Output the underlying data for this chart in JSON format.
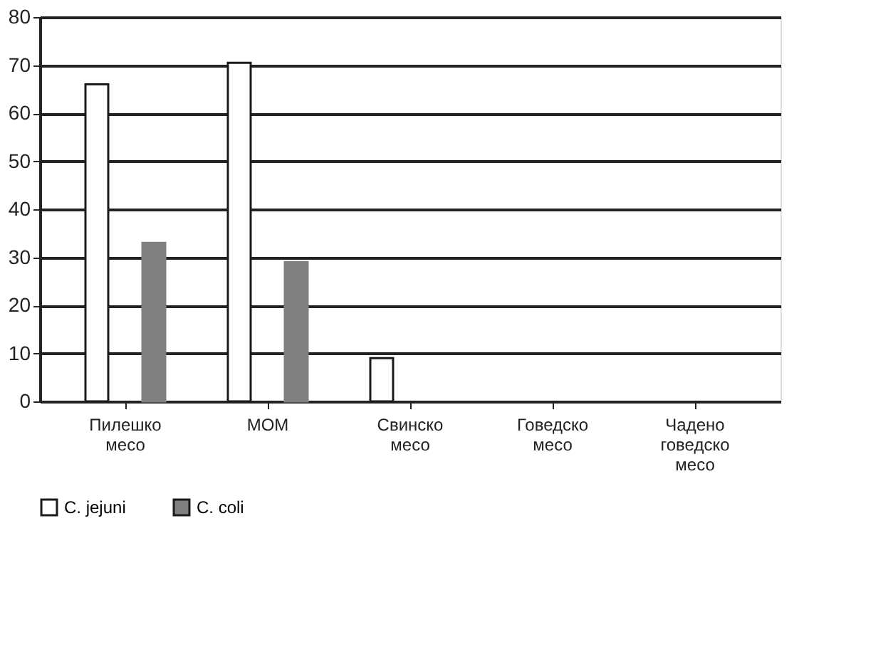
{
  "chart_data": {
    "type": "bar",
    "categories": [
      "Пилешко месо",
      "МОМ",
      "Свинско месо",
      "Говедско месо",
      "Чадено говедско месо"
    ],
    "series": [
      {
        "name": "C. jejuni",
        "color": "#ffffff",
        "values": [
          66,
          70.5,
          9,
          0,
          0
        ]
      },
      {
        "name": "C. coli",
        "color": "#808080",
        "values": [
          33,
          29,
          0,
          0,
          0
        ]
      }
    ],
    "ylim": [
      0,
      80
    ],
    "yticks": [
      0,
      10,
      20,
      30,
      40,
      50,
      60,
      70,
      80
    ],
    "grid": "y",
    "legend": "bottom"
  }
}
